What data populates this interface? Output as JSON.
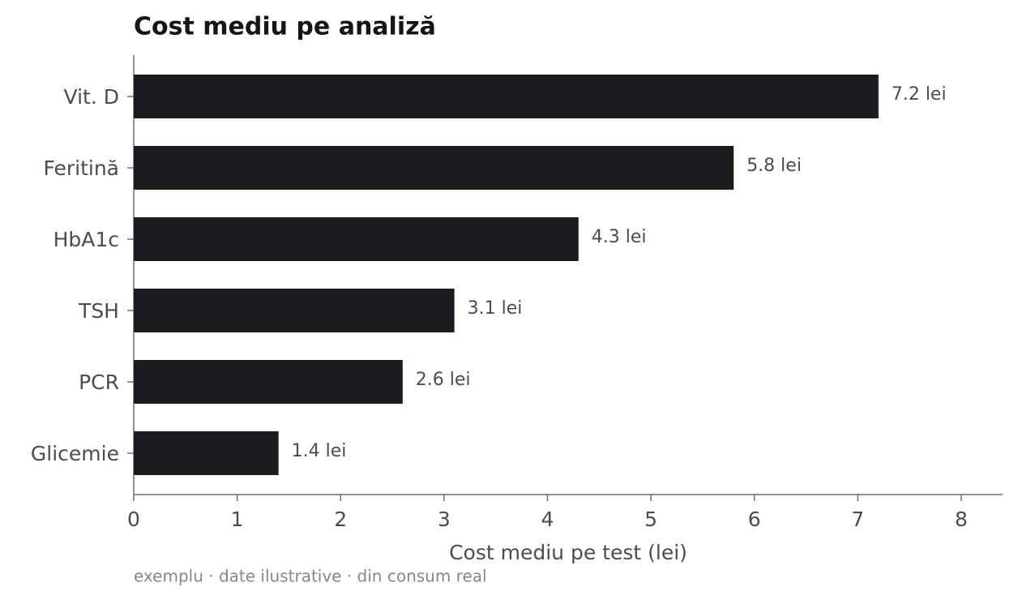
{
  "chart_data": {
    "type": "hbar",
    "title": "Cost mediu pe analiză",
    "categories": [
      "Vit. D",
      "Feritină",
      "HbA1c",
      "TSH",
      "PCR",
      "Glicemie"
    ],
    "values": [
      7.2,
      5.8,
      4.3,
      3.1,
      2.6,
      1.4
    ],
    "value_labels": [
      "7.2 lei",
      "5.8 lei",
      "4.3 lei",
      "3.1 lei",
      "2.6 lei",
      "1.4 lei"
    ],
    "color": "#1b1c1f",
    "xlim": [
      0,
      8.4
    ],
    "xticks": [
      0,
      1,
      2,
      3,
      4,
      5,
      6,
      7,
      8
    ],
    "xlabel": "Cost mediu pe test (lei)",
    "note": "exemplu · date ilustrative · din consum real"
  }
}
